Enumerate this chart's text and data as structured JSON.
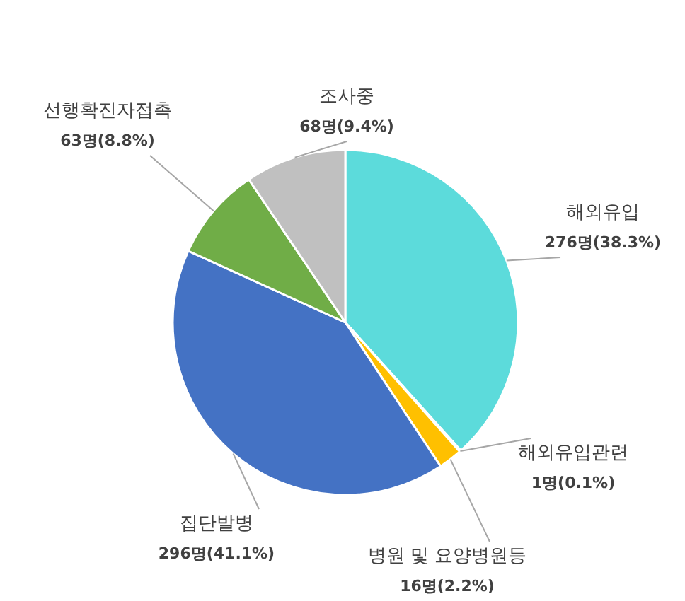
{
  "chart_data": {
    "type": "pie",
    "categories": [
      "해외유입",
      "해외유입관련",
      "병원 및 요양병원등",
      "집단발병",
      "선행확진자접촉",
      "조사중"
    ],
    "values": [
      276,
      1,
      16,
      296,
      63,
      68
    ],
    "colors": [
      "#5cdbdb",
      "#d9d9d9",
      "#ffc000",
      "#4472c4",
      "#70ad47",
      "#c0c0c0"
    ],
    "value_labels": [
      "276명(38.3%)",
      "1명(0.1%)",
      "16명(2.2%)",
      "296명(41.1%)",
      "63명(8.8%)",
      "68명(9.4%)"
    ]
  }
}
